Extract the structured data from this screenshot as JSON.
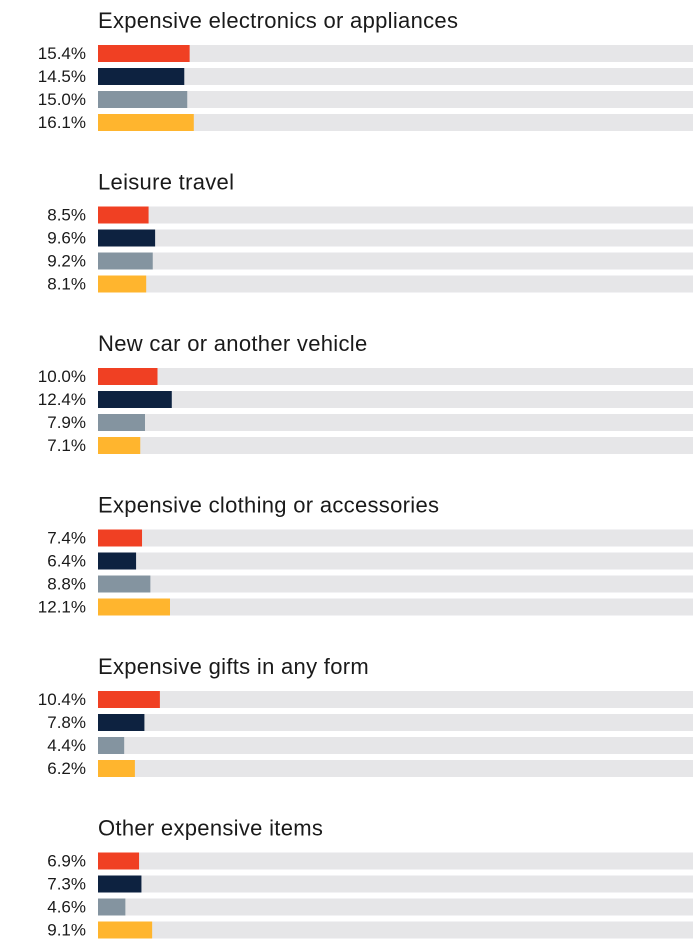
{
  "chart_data": {
    "type": "bar",
    "orientation": "horizontal",
    "categories": [
      "Expensive electronics or appliances",
      "Leisure travel",
      "New car or another vehicle",
      "Expensive clothing or accessories",
      "Expensive gifts in any form",
      "Other expensive items"
    ],
    "series": [
      {
        "color": "#f04023",
        "values": [
          15.4,
          8.5,
          10.0,
          7.4,
          10.4,
          6.9
        ],
        "value_labels": [
          "15.4%",
          "8.5%",
          "10.0%",
          "7.4%",
          "10.4%",
          "6.9%"
        ]
      },
      {
        "color": "#0d2240",
        "values": [
          14.5,
          9.6,
          12.4,
          6.4,
          7.8,
          7.3
        ],
        "value_labels": [
          "14.5%",
          "9.6%",
          "12.4%",
          "6.4%",
          "7.8%",
          "7.3%"
        ]
      },
      {
        "color": "#8494a0",
        "values": [
          15.0,
          9.2,
          7.9,
          8.8,
          4.4,
          4.6
        ],
        "value_labels": [
          "15.0%",
          "9.2%",
          "7.9%",
          "8.8%",
          "4.4%",
          "4.6%"
        ]
      },
      {
        "color": "#ffb52e",
        "values": [
          16.1,
          8.1,
          7.1,
          12.1,
          6.2,
          9.1
        ],
        "value_labels": [
          "16.1%",
          "8.1%",
          "7.1%",
          "12.1%",
          "6.2%",
          "9.1%"
        ]
      }
    ],
    "xlim": [
      0,
      100
    ]
  }
}
